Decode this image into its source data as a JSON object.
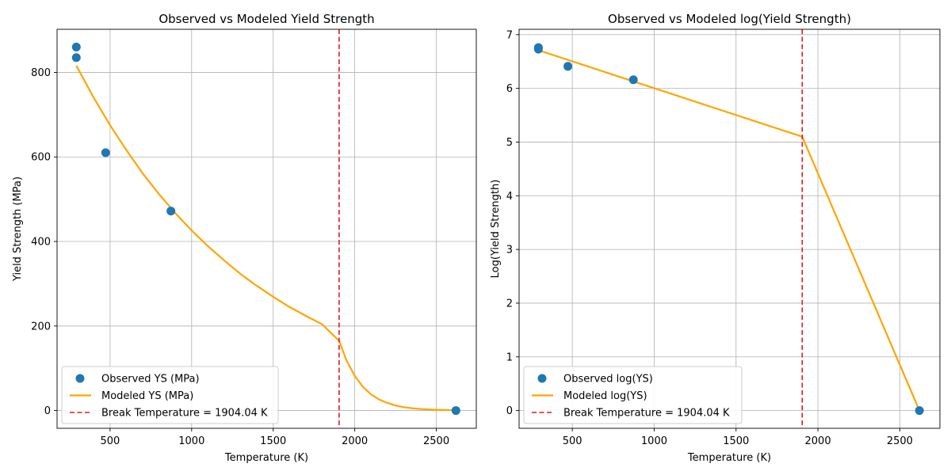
{
  "colors": {
    "observed": "#1f77b4",
    "modeled": "#ffa500",
    "break_line": "#e31a1c",
    "grid": "#b0b0b0"
  },
  "chart_data": [
    {
      "type": "line",
      "title": "Observed vs Modeled Yield Strength",
      "xlabel": "Temperature (K)",
      "ylabel": "Yield Strength (MPa)",
      "xlim": [
        175,
        2745
      ],
      "ylim": [
        -42,
        902
      ],
      "xticks": [
        500,
        1000,
        1500,
        2000,
        2500
      ],
      "yticks": [
        0,
        200,
        400,
        600,
        800
      ],
      "grid": true,
      "legend_position": "lower-left",
      "series": [
        {
          "name": "Observed YS (MPa)",
          "kind": "scatter",
          "x": [
            293,
            293,
            473,
            873,
            2620
          ],
          "y": [
            860,
            835,
            610,
            472,
            0
          ]
        },
        {
          "name": "Modeled YS (MPa)",
          "kind": "line",
          "x": [
            293,
            400,
            500,
            600,
            700,
            800,
            900,
            1000,
            1100,
            1200,
            1300,
            1400,
            1500,
            1600,
            1700,
            1800,
            1904.04,
            1950,
            2000,
            2050,
            2100,
            2150,
            2200,
            2250,
            2300,
            2350,
            2400,
            2450,
            2500,
            2550,
            2620
          ],
          "y": [
            816,
            740,
            675,
            616,
            561,
            512,
            467,
            426,
            389,
            355,
            323,
            295,
            269,
            245,
            224,
            204,
            165,
            118,
            82,
            56,
            38,
            26,
            18,
            12,
            8,
            5.5,
            3.8,
            2.6,
            1.8,
            1.3,
            1
          ]
        },
        {
          "name": "Break Temperature = 1904.04 K",
          "kind": "vline",
          "x": 1904.04
        }
      ]
    },
    {
      "type": "line",
      "title": "Observed vs Modeled log(Yield Strength)",
      "xlabel": "Temperature (K)",
      "ylabel": "Log(Yield Strength)",
      "xlim": [
        175,
        2745
      ],
      "ylim": [
        -0.33,
        7.1
      ],
      "xticks": [
        500,
        1000,
        1500,
        2000,
        2500
      ],
      "yticks": [
        0,
        1,
        2,
        3,
        4,
        5,
        6,
        7
      ],
      "grid": true,
      "legend_position": "lower-left",
      "series": [
        {
          "name": "Observed log(YS)",
          "kind": "scatter",
          "x": [
            293,
            293,
            473,
            873,
            2620
          ],
          "y": [
            6.76,
            6.73,
            6.41,
            6.16,
            0
          ]
        },
        {
          "name": "Modeled log(YS)",
          "kind": "line",
          "x": [
            293,
            1904.04,
            2620
          ],
          "y": [
            6.71,
            5.1,
            0
          ]
        },
        {
          "name": "Break Temperature = 1904.04 K",
          "kind": "vline",
          "x": 1904.04
        }
      ]
    }
  ]
}
